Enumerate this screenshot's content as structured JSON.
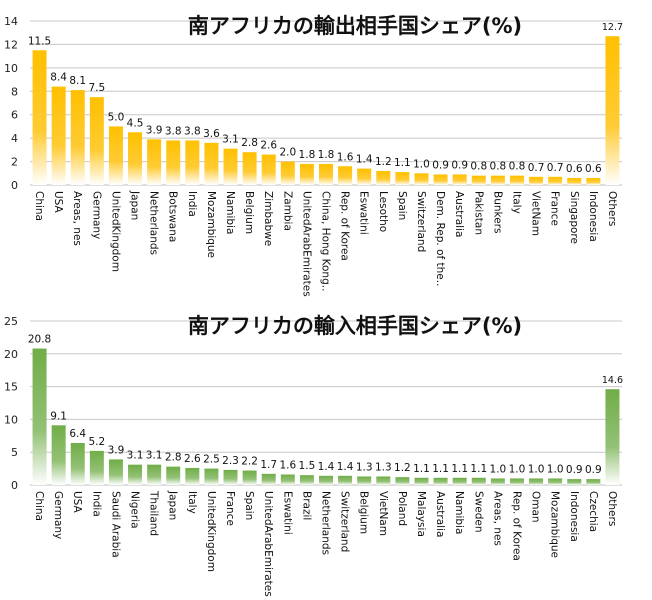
{
  "chart_data": [
    {
      "type": "bar",
      "title": "南アフリカの輸出相手国シェア(%)",
      "xlabel": "",
      "ylabel": "",
      "ylim": [
        0,
        14
      ],
      "yticks": [
        0,
        2,
        4,
        6,
        8,
        10,
        12,
        14
      ],
      "grid": true,
      "color": "#FFC000",
      "categories": [
        "China",
        "USA",
        "Areas, nes",
        "Germany",
        "UnitedKingdom",
        "Japan",
        "Netherlands",
        "Botswana",
        "India",
        "Mozambique",
        "Namibia",
        "Belgium",
        "Zimbabwe",
        "Zambia",
        "UnitedArabEmirates",
        "China, Hong Kong..",
        "Rep. of Korea",
        "Eswatini",
        "Lesotho",
        "Spain",
        "Switzerland",
        "Dem. Rep. of the..",
        "Australia",
        "Pakistan",
        "Bunkers",
        "Italy",
        "VietNam",
        "France",
        "Singapore",
        "Indonesia",
        "Others"
      ],
      "values": [
        11.5,
        8.4,
        8.1,
        7.5,
        5.0,
        4.5,
        3.9,
        3.8,
        3.8,
        3.6,
        3.1,
        2.8,
        2.6,
        2.0,
        1.8,
        1.8,
        1.6,
        1.4,
        1.2,
        1.1,
        1.0,
        0.9,
        0.9,
        0.8,
        0.8,
        0.8,
        0.7,
        0.7,
        0.6,
        0.6,
        12.7
      ]
    },
    {
      "type": "bar",
      "title": "南アフリカの輸入相手国シェア(%)",
      "xlabel": "",
      "ylabel": "",
      "ylim": [
        0,
        25
      ],
      "yticks": [
        0,
        5,
        10,
        15,
        20,
        25
      ],
      "grid": true,
      "color": "#70AD47",
      "categories": [
        "China",
        "Germany",
        "USA",
        "India",
        "Saudi Arabia",
        "Nigeria",
        "Thailand",
        "Japan",
        "Italy",
        "UnitedKingdom",
        "France",
        "Spain",
        "UnitedArabEmirates",
        "Eswatini",
        "Brazil",
        "Netherlands",
        "Switzerland",
        "Belgium",
        "VietNam",
        "Poland",
        "Malaysia",
        "Australia",
        "Namibia",
        "Sweden",
        "Areas, nes",
        "Rep. of Korea",
        "Oman",
        "Mozambique",
        "Indonesia",
        "Czechia",
        "Others"
      ],
      "values": [
        20.8,
        9.1,
        6.4,
        5.2,
        3.9,
        3.1,
        3.1,
        2.8,
        2.6,
        2.5,
        2.3,
        2.2,
        1.7,
        1.6,
        1.5,
        1.4,
        1.4,
        1.3,
        1.3,
        1.2,
        1.1,
        1.1,
        1.1,
        1.1,
        1.0,
        1.0,
        1.0,
        1.0,
        0.9,
        0.9,
        14.6
      ]
    }
  ]
}
